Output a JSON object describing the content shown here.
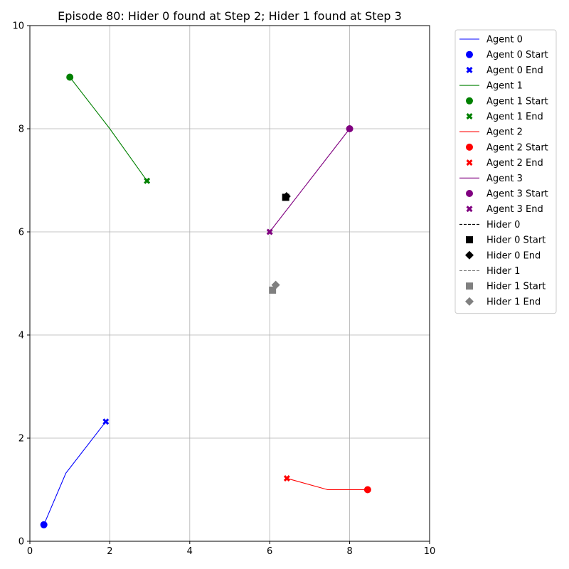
{
  "chart_data": {
    "type": "line",
    "title": "Episode 80: Hider 0 found at Step 2; Hider 1 found at Step 3",
    "xlabel": "",
    "ylabel": "",
    "xlim": [
      0,
      10
    ],
    "ylim": [
      0,
      10
    ],
    "xticks": [
      0,
      2,
      4,
      6,
      8,
      10
    ],
    "yticks": [
      0,
      2,
      4,
      6,
      8,
      10
    ],
    "grid": true,
    "legend_position": "outside-right",
    "series": [
      {
        "name": "Agent 0",
        "color": "#0000ff",
        "dash": "solid",
        "points": [
          [
            0.35,
            0.32
          ],
          [
            0.9,
            1.32
          ],
          [
            1.9,
            2.32
          ]
        ],
        "start_label": "Agent 0 Start",
        "end_label": "Agent 0 End",
        "start_marker": "circle",
        "end_marker": "x"
      },
      {
        "name": "Agent 1",
        "color": "#008000",
        "dash": "solid",
        "points": [
          [
            1.0,
            9.0
          ],
          [
            2.0,
            8.0
          ],
          [
            2.93,
            6.99
          ]
        ],
        "start_label": "Agent 1 Start",
        "end_label": "Agent 1 End",
        "start_marker": "circle",
        "end_marker": "x"
      },
      {
        "name": "Agent 2",
        "color": "#ff0000",
        "dash": "solid",
        "points": [
          [
            8.45,
            1.0
          ],
          [
            7.45,
            1.0
          ],
          [
            6.43,
            1.22
          ]
        ],
        "start_label": "Agent 2 Start",
        "end_label": "Agent 2 End",
        "start_marker": "circle",
        "end_marker": "x"
      },
      {
        "name": "Agent 3",
        "color": "#800080",
        "dash": "solid",
        "points": [
          [
            8.0,
            8.0
          ],
          [
            7.0,
            7.0
          ],
          [
            6.0,
            6.0
          ]
        ],
        "start_label": "Agent 3 Start",
        "end_label": "Agent 3 End",
        "start_marker": "circle",
        "end_marker": "x"
      },
      {
        "name": "Hider 0",
        "color": "#000000",
        "dash": "dashed",
        "points": [
          [
            6.4,
            6.67
          ],
          [
            6.41,
            6.68
          ],
          [
            6.42,
            6.69
          ]
        ],
        "start_label": "Hider 0 Start",
        "end_label": "Hider 0 End",
        "start_marker": "square",
        "end_marker": "diamond"
      },
      {
        "name": "Hider 1",
        "color": "#808080",
        "dash": "dashed",
        "points": [
          [
            6.07,
            4.87
          ],
          [
            6.1,
            4.92
          ],
          [
            6.15,
            4.97
          ]
        ],
        "start_label": "Hider 1 Start",
        "end_label": "Hider 1 End",
        "start_marker": "square",
        "end_marker": "diamond"
      }
    ]
  }
}
